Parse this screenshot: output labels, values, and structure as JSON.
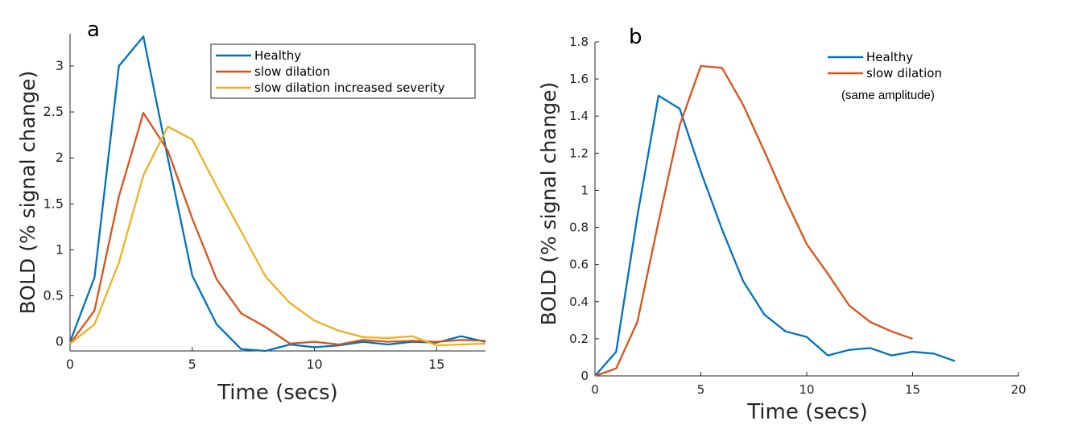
{
  "chart_data": [
    {
      "type": "line",
      "panel_label": "a",
      "xlabel": "Time (secs)",
      "ylabel": "BOLD (% signal change)",
      "xlim": [
        0,
        17
      ],
      "ylim": [
        -0.1,
        3.35
      ],
      "xticks": [
        0,
        5,
        10,
        15
      ],
      "yticks": [
        0,
        0.5,
        1,
        1.5,
        2,
        2.5,
        3
      ],
      "xtick_labels": [
        "0",
        "5",
        "10",
        "15"
      ],
      "ytick_labels": [
        "0",
        "0.5",
        "1",
        "1.5",
        "2",
        "2.5",
        "3"
      ],
      "legend_position": "top-right",
      "x": [
        0,
        1,
        2,
        3,
        4,
        5,
        6,
        7,
        8,
        9,
        10,
        11,
        12,
        13,
        14,
        15,
        16,
        17
      ],
      "series": [
        {
          "name": "Healthy",
          "color": "#0072BD",
          "values": [
            0,
            0.7,
            3.0,
            3.32,
            2.0,
            0.72,
            0.19,
            -0.08,
            -0.1,
            -0.03,
            -0.06,
            -0.04,
            0.0,
            -0.03,
            0.0,
            -0.01,
            0.06,
            0.0
          ]
        },
        {
          "name": "slow dilation",
          "color": "#D95319",
          "values": [
            -0.02,
            0.34,
            1.58,
            2.49,
            2.08,
            1.34,
            0.68,
            0.31,
            0.16,
            -0.02,
            0.0,
            -0.03,
            0.02,
            0.0,
            0.01,
            0.0,
            0.02,
            0.01
          ]
        },
        {
          "name": "slow dilation increased severity",
          "color": "#EDB120",
          "values": [
            -0.02,
            0.19,
            0.86,
            1.81,
            2.34,
            2.2,
            1.69,
            1.2,
            0.71,
            0.42,
            0.23,
            0.12,
            0.05,
            0.04,
            0.06,
            -0.04,
            -0.03,
            -0.02
          ]
        }
      ]
    },
    {
      "type": "line",
      "panel_label": "b",
      "xlabel": "Time (secs)",
      "ylabel": "BOLD (% signal change)",
      "xlim": [
        0,
        20
      ],
      "ylim": [
        0,
        1.8
      ],
      "xticks": [
        0,
        5,
        10,
        15,
        20
      ],
      "yticks": [
        0,
        0.2,
        0.4,
        0.6,
        0.8,
        1,
        1.2,
        1.4,
        1.6,
        1.8
      ],
      "xtick_labels": [
        "0",
        "5",
        "10",
        "15",
        "20"
      ],
      "ytick_labels": [
        "0",
        "0.2",
        "0.4",
        "0.6",
        "0.8",
        "1",
        "1.2",
        "1.4",
        "1.6",
        "1.8"
      ],
      "legend_position": "top-right",
      "annotation": "(same amplitude)",
      "series": [
        {
          "name": "Healthy",
          "color": "#0072BD",
          "x": [
            0,
            1,
            2,
            3,
            4,
            5,
            6,
            7,
            8,
            9,
            10,
            11,
            12,
            13,
            14,
            15,
            16,
            17
          ],
          "values": [
            0,
            0.13,
            0.86,
            1.51,
            1.44,
            1.1,
            0.79,
            0.51,
            0.33,
            0.24,
            0.21,
            0.11,
            0.14,
            0.15,
            0.11,
            0.13,
            0.12,
            0.08
          ]
        },
        {
          "name": "slow dilation",
          "color": "#D95319",
          "x": [
            0,
            1,
            2,
            3,
            4,
            5,
            6,
            7,
            8,
            9,
            10,
            11,
            12,
            13,
            14,
            15
          ],
          "values": [
            0,
            0.04,
            0.29,
            0.83,
            1.35,
            1.67,
            1.66,
            1.46,
            1.21,
            0.95,
            0.71,
            0.55,
            0.38,
            0.29,
            0.24,
            0.2
          ]
        }
      ]
    }
  ]
}
